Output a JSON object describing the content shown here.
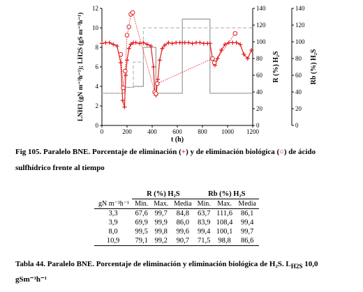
{
  "chart_data": {
    "type": "line",
    "xlabel": "t (h)",
    "ylabel_left": "LNH3 (gN m⁻³h⁻¹); LH2S (gS m⁻³h⁻¹)",
    "ylabel_right1": "R (%) H₂S",
    "ylabel_right2": "Rb (%) H₂S",
    "xlim": [
      0,
      1200
    ],
    "ylim_left": [
      0,
      12
    ],
    "ylim_right": [
      0,
      140
    ],
    "x_ticks": [
      "0",
      "200",
      "400",
      "600",
      "800",
      "1000",
      "1200"
    ],
    "y_ticks_left": [
      "0",
      "2",
      "4",
      "6",
      "8",
      "10",
      "12"
    ],
    "y_ticks_right": [
      "0",
      "20",
      "40",
      "60",
      "80",
      "100",
      "120",
      "140"
    ],
    "series": [
      {
        "color": "#999999",
        "style": "solid-step",
        "x": [
          0,
          180,
          180,
          250,
          250,
          330,
          330,
          430,
          430,
          640,
          640,
          860,
          860,
          1200
        ],
        "y": [
          3.3,
          3.3,
          3.9,
          3.9,
          4.0,
          4.0,
          8.0,
          8.0,
          3.3,
          3.3,
          10.9,
          10.9,
          3.3,
          3.3
        ]
      },
      {
        "color": "#bbbbbb",
        "style": "dashed-step",
        "x": [
          0,
          180,
          180,
          250,
          250,
          330,
          330,
          430,
          430,
          640,
          640,
          860,
          860,
          1200
        ],
        "y": [
          3.3,
          3.3,
          3.9,
          3.9,
          6.5,
          6.5,
          10.0,
          10.0,
          10.0,
          10.0,
          10.0,
          10.0,
          10.0,
          10.0
        ]
      },
      {
        "name": "R (%) H2S",
        "color": "#e41a1c",
        "marker": "plus",
        "x": [
          0,
          30,
          60,
          90,
          120,
          150,
          165,
          180,
          190,
          200,
          215,
          230,
          250,
          270,
          300,
          330,
          360,
          390,
          410,
          420,
          430,
          445,
          460,
          480,
          500,
          530,
          560,
          590,
          620,
          640,
          660,
          690,
          720,
          750,
          780,
          810,
          840,
          860,
          880,
          900,
          920,
          950,
          980,
          1010,
          1040,
          1070,
          1100,
          1130,
          1160,
          1190
        ],
        "y": [
          98,
          99,
          99,
          97,
          95,
          75,
          30,
          22,
          60,
          78,
          92,
          97,
          99,
          99,
          98,
          99,
          97,
          95,
          70,
          40,
          36,
          55,
          78,
          92,
          96,
          99,
          98,
          99,
          99,
          99,
          99,
          99,
          98,
          99,
          99,
          98,
          98,
          98,
          80,
          72,
          80,
          90,
          97,
          99,
          99,
          99,
          97,
          85,
          80,
          90
        ]
      },
      {
        "name": "Rb (%) H2S",
        "color": "#e41a1c",
        "marker": "circle",
        "x": [
          150,
          170,
          185,
          200,
          215,
          230,
          245,
          420,
          430,
          440,
          880,
          895,
          1060
        ],
        "y": [
          85,
          45,
          65,
          108,
          118,
          133,
          135,
          40,
          38,
          50,
          80,
          75,
          110
        ]
      }
    ]
  },
  "captions": {
    "fig_line1": "Fig 105. Paralelo BNE. Porcentaje de eliminación (",
    "fig_plus": "+",
    "fig_line1_mid": ") y de eliminación biológica (",
    "fig_circle": "○",
    "fig_line1_end": ") de ácido",
    "fig_line2": "sulfhídrico frente al tiempo",
    "table_line1": "Tabla 44. Paralelo BNE. Porcentaje de eliminación y eliminación biológica de H₂S. L",
    "table_sub": "H2S",
    "table_line1_end": " 10,0",
    "table_line2": "gSm⁻³h⁻¹"
  },
  "table": {
    "group_r": "R (%) H₂S",
    "group_rb": "Rb (%) H₂S",
    "col_load": "gN m⁻³h⁻¹",
    "col_min": "Min.",
    "col_max": "Max.",
    "col_mean": "Media",
    "rows": [
      [
        "3,3",
        "67,6",
        "99,7",
        "84,8",
        "63,7",
        "111,6",
        "86,1"
      ],
      [
        "3,9",
        "69,9",
        "99,9",
        "86,0",
        "83,9",
        "108,4",
        "99,4"
      ],
      [
        "8,0",
        "99,5",
        "99,8",
        "99,6",
        "99,4",
        "100,1",
        "99,7"
      ],
      [
        "10,9",
        "79,1",
        "99,2",
        "90,7",
        "71,5",
        "98,8",
        "86,6"
      ]
    ]
  }
}
